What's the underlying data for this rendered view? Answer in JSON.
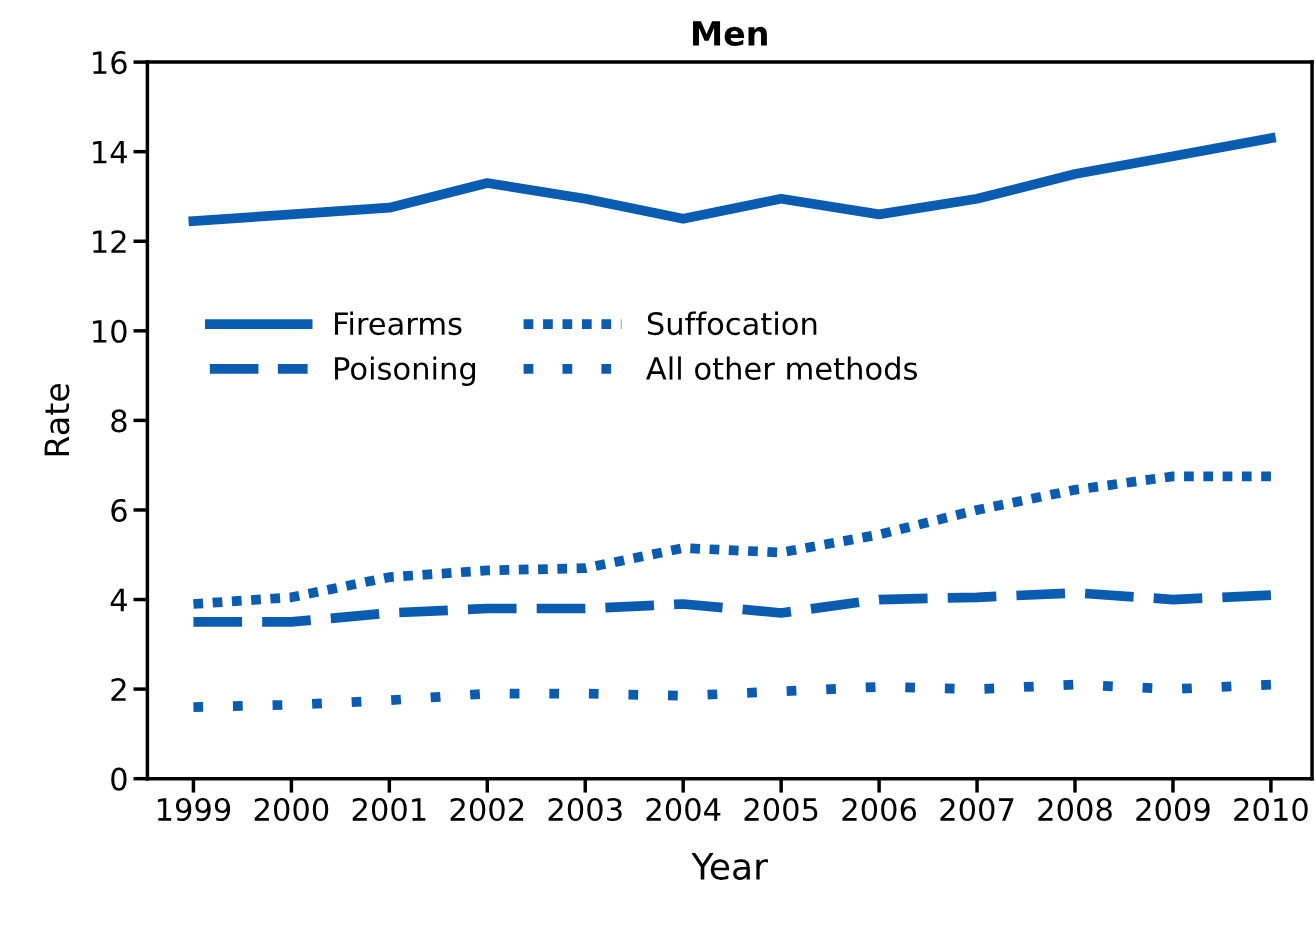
{
  "chart_data": {
    "type": "line",
    "title": "Men",
    "xlabel": "Year",
    "ylabel": "Rate",
    "x": [
      1999,
      2000,
      2001,
      2002,
      2003,
      2004,
      2005,
      2006,
      2007,
      2008,
      2009,
      2010
    ],
    "series": [
      {
        "name": "Firearms",
        "color": "#0a5cb0",
        "line_style": "solid",
        "values": [
          12.45,
          12.6,
          12.75,
          13.3,
          12.95,
          12.5,
          12.95,
          12.6,
          12.95,
          13.5,
          13.9,
          14.3
        ]
      },
      {
        "name": "Poisoning",
        "color": "#0a5cb0",
        "line_style": "dashed",
        "values": [
          3.5,
          3.5,
          3.7,
          3.8,
          3.8,
          3.9,
          3.7,
          4.0,
          4.05,
          4.15,
          4.0,
          4.1
        ]
      },
      {
        "name": "Suffocation",
        "color": "#0a5cb0",
        "line_style": "dotted",
        "values": [
          3.9,
          4.05,
          4.5,
          4.65,
          4.7,
          5.15,
          5.05,
          5.45,
          6.0,
          6.45,
          6.75,
          6.75
        ]
      },
      {
        "name": "All other methods",
        "color": "#0a5cb0",
        "line_style": "dotted",
        "values": [
          1.6,
          1.65,
          1.75,
          1.9,
          1.9,
          1.85,
          1.95,
          2.05,
          2.0,
          2.1,
          2.0,
          2.1
        ]
      }
    ],
    "xlim": [
      1998.53,
      2010.42
    ],
    "xticks": [
      1999,
      2000,
      2001,
      2002,
      2003,
      2004,
      2005,
      2006,
      2007,
      2008,
      2009,
      2010
    ],
    "ylim": [
      0,
      16
    ],
    "yticks": [
      0,
      2,
      4,
      6,
      8,
      10,
      12,
      14,
      16
    ],
    "grid": false,
    "legend": "center left",
    "marker": "none"
  }
}
